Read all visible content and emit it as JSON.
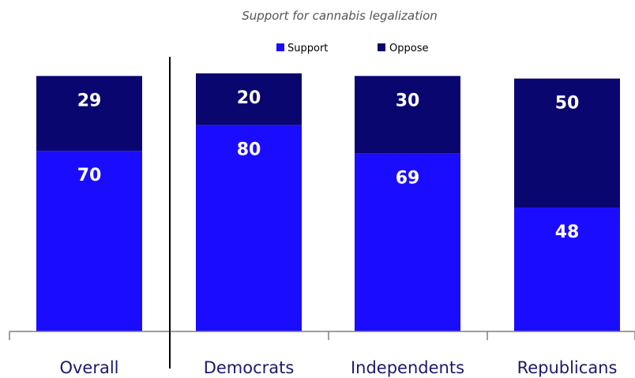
{
  "chart_data": {
    "type": "bar",
    "stacked": true,
    "title": "Support for cannabis legalization",
    "categories": [
      "Overall",
      "Democrats",
      "Independents",
      "Republicans"
    ],
    "series": [
      {
        "name": "Support",
        "values": [
          70,
          80,
          69,
          48
        ],
        "color": "#1a0dff"
      },
      {
        "name": "Oppose",
        "values": [
          29,
          20,
          30,
          50
        ],
        "color": "#0a0670"
      }
    ],
    "ylim": [
      0,
      100
    ],
    "legend": "top-center",
    "grid": false
  }
}
